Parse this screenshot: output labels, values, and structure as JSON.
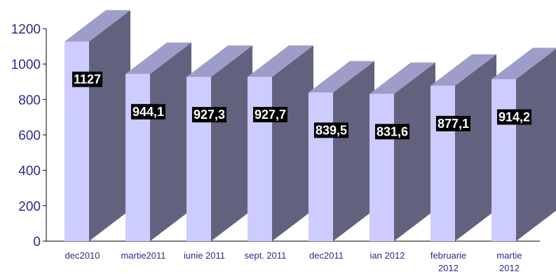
{
  "chart_data": {
    "type": "bar",
    "style": "3d-column",
    "title": "",
    "xlabel": "",
    "ylabel": "",
    "ylim": [
      0,
      1200
    ],
    "yticks": [
      0,
      200,
      400,
      600,
      800,
      1000,
      1200
    ],
    "grid": false,
    "legend": "none",
    "categories": [
      [
        "dec2010"
      ],
      [
        "martie2011"
      ],
      [
        "iunie 2011"
      ],
      [
        "sept. 2011"
      ],
      [
        "dec2011"
      ],
      [
        "ian 2012"
      ],
      [
        "februarie",
        "2012"
      ],
      [
        "martie",
        "2012"
      ]
    ],
    "values": [
      1127,
      944.1,
      927.3,
      927.7,
      839.5,
      831.6,
      877.1,
      914.2
    ],
    "data_labels": [
      "1127",
      "944,1",
      "927,3",
      "927,7",
      "839,5",
      "831,6",
      "877,1",
      "914,2"
    ],
    "colors": {
      "bar_front": "#ccccff",
      "bar_side": "#62627f",
      "bar_top": "#9d9dc9",
      "label_bg": "#000000",
      "label_text": "#ffffff",
      "axis": "#000000",
      "tick_text": "#2b2b8c"
    }
  }
}
